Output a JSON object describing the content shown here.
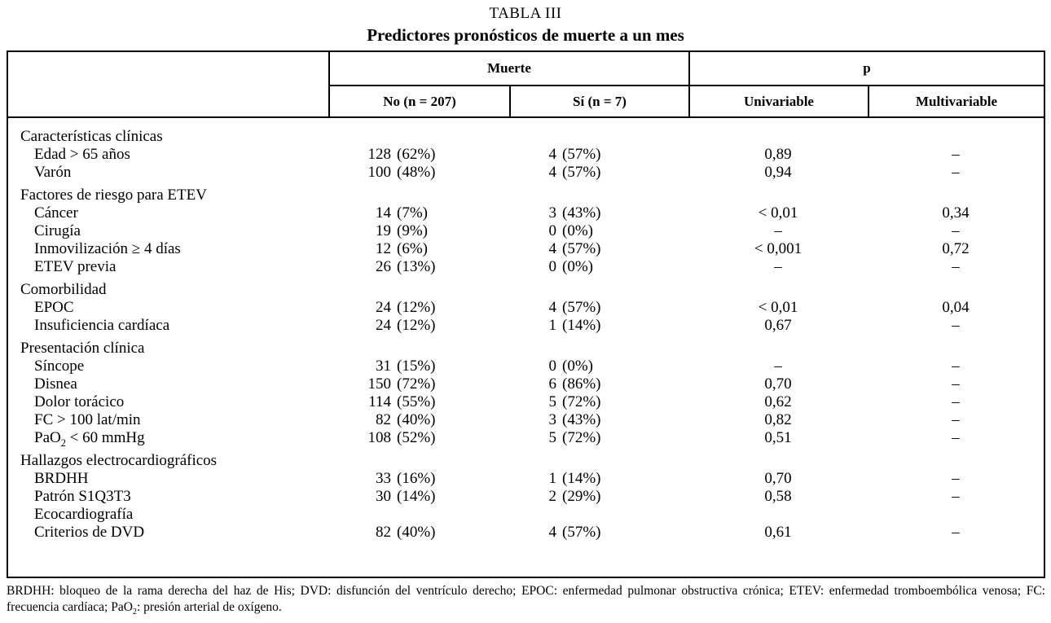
{
  "title": "TABLA III",
  "subtitle": "Predictores pronósticos de muerte a un mes",
  "table": {
    "groups": [
      {
        "label": "Muerte"
      },
      {
        "label": "p"
      }
    ],
    "sub_headers": [
      "No (n = 207)",
      "Sí (n = 7)",
      "Univariable",
      "Multivariable"
    ],
    "rows": [
      {
        "type": "section",
        "label": "Características clínicas",
        "no_n": "",
        "no_pct": "",
        "si_n": "",
        "si_pct": "",
        "uni": "",
        "multi": ""
      },
      {
        "type": "item",
        "label": "Edad > 65 años",
        "no_n": "128",
        "no_pct": "(62%)",
        "si_n": "4",
        "si_pct": "(57%)",
        "uni": "0,89",
        "multi": "–"
      },
      {
        "type": "item",
        "label": "Varón",
        "no_n": "100",
        "no_pct": "(48%)",
        "si_n": "4",
        "si_pct": "(57%)",
        "uni": "0,94",
        "multi": "–"
      },
      {
        "type": "section",
        "label": "Factores de riesgo para ETEV",
        "no_n": "",
        "no_pct": "",
        "si_n": "",
        "si_pct": "",
        "uni": "",
        "multi": ""
      },
      {
        "type": "item",
        "label": "Cáncer",
        "no_n": "14",
        "no_pct": "(7%)",
        "si_n": "3",
        "si_pct": "(43%)",
        "uni": "< 0,01",
        "multi": "0,34"
      },
      {
        "type": "item",
        "label": "Cirugía",
        "no_n": "19",
        "no_pct": "(9%)",
        "si_n": "0",
        "si_pct": "(0%)",
        "uni": "–",
        "multi": "–"
      },
      {
        "type": "item",
        "label": "Inmovilización ≥ 4 días",
        "no_n": "12",
        "no_pct": "(6%)",
        "si_n": "4",
        "si_pct": "(57%)",
        "uni": "< 0,001",
        "multi": "0,72"
      },
      {
        "type": "item",
        "label": "ETEV previa",
        "no_n": "26",
        "no_pct": "(13%)",
        "si_n": "0",
        "si_pct": "(0%)",
        "uni": "–",
        "multi": "–"
      },
      {
        "type": "section",
        "label": "Comorbilidad",
        "no_n": "",
        "no_pct": "",
        "si_n": "",
        "si_pct": "",
        "uni": "",
        "multi": ""
      },
      {
        "type": "item",
        "label": "EPOC",
        "no_n": "24",
        "no_pct": "(12%)",
        "si_n": "4",
        "si_pct": "(57%)",
        "uni": "< 0,01",
        "multi": "0,04"
      },
      {
        "type": "item",
        "label": "Insuficiencia cardíaca",
        "no_n": "24",
        "no_pct": "(12%)",
        "si_n": "1",
        "si_pct": "(14%)",
        "uni": "0,67",
        "multi": "–"
      },
      {
        "type": "section",
        "label": "Presentación clínica",
        "no_n": "",
        "no_pct": "",
        "si_n": "",
        "si_pct": "",
        "uni": "",
        "multi": ""
      },
      {
        "type": "item",
        "label": "Síncope",
        "no_n": "31",
        "no_pct": "(15%)",
        "si_n": "0",
        "si_pct": "(0%)",
        "uni": "–",
        "multi": "–"
      },
      {
        "type": "item",
        "label": "Disnea",
        "no_n": "150",
        "no_pct": "(72%)",
        "si_n": "6",
        "si_pct": "(86%)",
        "uni": "0,70",
        "multi": "–"
      },
      {
        "type": "item",
        "label": "Dolor torácico",
        "no_n": "114",
        "no_pct": "(55%)",
        "si_n": "5",
        "si_pct": "(72%)",
        "uni": "0,62",
        "multi": "–"
      },
      {
        "type": "item",
        "label": "FC > 100 lat/min",
        "no_n": "82",
        "no_pct": "(40%)",
        "si_n": "3",
        "si_pct": "(43%)",
        "uni": "0,82",
        "multi": "–"
      },
      {
        "type": "item",
        "label": "PaO2 < 60 mmHg",
        "no_n": "108",
        "no_pct": "(52%)",
        "si_n": "5",
        "si_pct": "(72%)",
        "uni": "0,51",
        "multi": "–"
      },
      {
        "type": "section",
        "label": "Hallazgos electrocardiográficos",
        "no_n": "",
        "no_pct": "",
        "si_n": "",
        "si_pct": "",
        "uni": "",
        "multi": ""
      },
      {
        "type": "item",
        "label": "BRDHH",
        "no_n": "33",
        "no_pct": "(16%)",
        "si_n": "1",
        "si_pct": "(14%)",
        "uni": "0,70",
        "multi": "–"
      },
      {
        "type": "item",
        "label": "Patrón S1Q3T3",
        "no_n": "30",
        "no_pct": "(14%)",
        "si_n": "2",
        "si_pct": "(29%)",
        "uni": "0,58",
        "multi": "–"
      },
      {
        "type": "item",
        "label": "Ecocardiografía",
        "no_n": "",
        "no_pct": "",
        "si_n": "",
        "si_pct": "",
        "uni": "",
        "multi": ""
      },
      {
        "type": "item",
        "label": "Criterios de DVD",
        "no_n": "82",
        "no_pct": "(40%)",
        "si_n": "4",
        "si_pct": "(57%)",
        "uni": "0,61",
        "multi": "–"
      }
    ]
  },
  "footnote": "BRDHH: bloqueo de la rama derecha del haz de His; DVD: disfunción del ventrículo derecho; EPOC: enfermedad pulmonar obstructiva crónica; ETEV: enfermedad tromboembólica venosa; FC: frecuencia cardíaca; PaO2: presión arterial de oxígeno."
}
